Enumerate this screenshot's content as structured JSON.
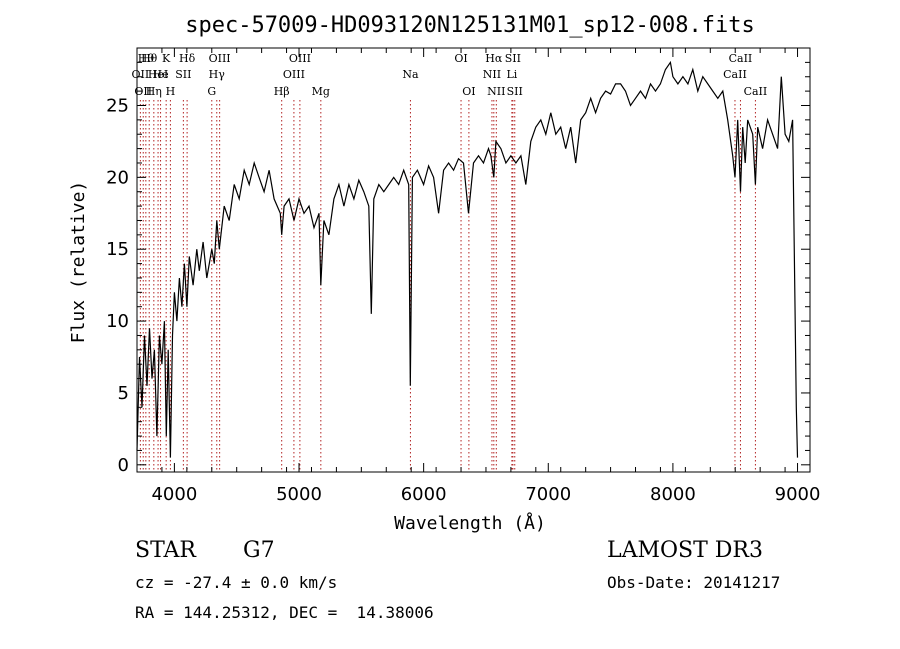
{
  "chart_data": {
    "type": "line",
    "title": "spec-57009-HD093120N125131M01_sp12-008.fits",
    "xlabel": "Wavelength (Å)",
    "ylabel": "Flux (relative)",
    "xlim": [
      3700,
      9100
    ],
    "ylim": [
      -0.5,
      29
    ],
    "x_ticks": [
      4000,
      5000,
      6000,
      7000,
      8000,
      9000
    ],
    "y_ticks": [
      0,
      5,
      10,
      15,
      20,
      25
    ],
    "grid": false,
    "line_color": "#000000",
    "marker_color": "#b22222",
    "series": [
      {
        "values": [
          [
            3700,
            1.0
          ],
          [
            3720,
            7.5
          ],
          [
            3740,
            4.0
          ],
          [
            3760,
            9.0
          ],
          [
            3780,
            5.5
          ],
          [
            3800,
            9.5
          ],
          [
            3820,
            6.0
          ],
          [
            3840,
            8.0
          ],
          [
            3860,
            2.0
          ],
          [
            3880,
            9.0
          ],
          [
            3900,
            7.0
          ],
          [
            3920,
            10.0
          ],
          [
            3935,
            2.0
          ],
          [
            3950,
            8.0
          ],
          [
            3968,
            0.5
          ],
          [
            3985,
            9.0
          ],
          [
            4000,
            12.0
          ],
          [
            4020,
            10.0
          ],
          [
            4040,
            13.0
          ],
          [
            4060,
            11.0
          ],
          [
            4080,
            14.0
          ],
          [
            4100,
            11.0
          ],
          [
            4120,
            14.5
          ],
          [
            4150,
            12.5
          ],
          [
            4180,
            15.0
          ],
          [
            4200,
            13.5
          ],
          [
            4230,
            15.5
          ],
          [
            4260,
            13.0
          ],
          [
            4300,
            15.0
          ],
          [
            4320,
            14.0
          ],
          [
            4340,
            17.0
          ],
          [
            4360,
            15.0
          ],
          [
            4400,
            18.0
          ],
          [
            4440,
            17.0
          ],
          [
            4480,
            19.5
          ],
          [
            4520,
            18.5
          ],
          [
            4560,
            20.5
          ],
          [
            4600,
            19.5
          ],
          [
            4640,
            21.0
          ],
          [
            4680,
            20.0
          ],
          [
            4720,
            19.0
          ],
          [
            4760,
            20.5
          ],
          [
            4800,
            18.5
          ],
          [
            4850,
            17.5
          ],
          [
            4861,
            16.0
          ],
          [
            4880,
            18.0
          ],
          [
            4920,
            18.5
          ],
          [
            4960,
            17.0
          ],
          [
            5000,
            18.5
          ],
          [
            5040,
            17.5
          ],
          [
            5080,
            18.0
          ],
          [
            5120,
            16.5
          ],
          [
            5160,
            17.5
          ],
          [
            5175,
            12.5
          ],
          [
            5200,
            17.0
          ],
          [
            5240,
            16.0
          ],
          [
            5280,
            18.5
          ],
          [
            5320,
            19.5
          ],
          [
            5360,
            18.0
          ],
          [
            5400,
            19.5
          ],
          [
            5440,
            18.5
          ],
          [
            5480,
            19.8
          ],
          [
            5520,
            19.0
          ],
          [
            5560,
            18.0
          ],
          [
            5580,
            10.5
          ],
          [
            5600,
            18.5
          ],
          [
            5640,
            19.5
          ],
          [
            5680,
            19.0
          ],
          [
            5720,
            19.5
          ],
          [
            5760,
            20.0
          ],
          [
            5800,
            19.5
          ],
          [
            5840,
            20.5
          ],
          [
            5880,
            19.5
          ],
          [
            5893,
            5.5
          ],
          [
            5910,
            20.0
          ],
          [
            5950,
            20.5
          ],
          [
            6000,
            19.5
          ],
          [
            6040,
            20.8
          ],
          [
            6080,
            20.0
          ],
          [
            6120,
            17.5
          ],
          [
            6160,
            20.5
          ],
          [
            6200,
            21.0
          ],
          [
            6240,
            20.5
          ],
          [
            6280,
            21.3
          ],
          [
            6320,
            21.0
          ],
          [
            6360,
            17.5
          ],
          [
            6400,
            21.0
          ],
          [
            6440,
            21.5
          ],
          [
            6480,
            21.0
          ],
          [
            6520,
            22.0
          ],
          [
            6540,
            21.5
          ],
          [
            6563,
            20.0
          ],
          [
            6580,
            22.5
          ],
          [
            6620,
            22.0
          ],
          [
            6660,
            21.0
          ],
          [
            6700,
            21.5
          ],
          [
            6740,
            21.0
          ],
          [
            6780,
            21.5
          ],
          [
            6820,
            19.5
          ],
          [
            6860,
            22.5
          ],
          [
            6900,
            23.5
          ],
          [
            6940,
            24.0
          ],
          [
            6980,
            23.0
          ],
          [
            7020,
            24.5
          ],
          [
            7060,
            23.0
          ],
          [
            7100,
            23.5
          ],
          [
            7140,
            22.0
          ],
          [
            7180,
            23.5
          ],
          [
            7220,
            21.0
          ],
          [
            7260,
            24.0
          ],
          [
            7300,
            24.5
          ],
          [
            7340,
            25.5
          ],
          [
            7380,
            24.5
          ],
          [
            7420,
            25.5
          ],
          [
            7460,
            26.0
          ],
          [
            7500,
            25.8
          ],
          [
            7540,
            26.5
          ],
          [
            7580,
            26.5
          ],
          [
            7620,
            26.0
          ],
          [
            7660,
            25.0
          ],
          [
            7700,
            25.5
          ],
          [
            7740,
            26.0
          ],
          [
            7780,
            25.5
          ],
          [
            7820,
            26.5
          ],
          [
            7860,
            26.0
          ],
          [
            7900,
            26.5
          ],
          [
            7940,
            27.5
          ],
          [
            7980,
            28.0
          ],
          [
            8000,
            27.0
          ],
          [
            8040,
            26.5
          ],
          [
            8080,
            27.0
          ],
          [
            8120,
            26.5
          ],
          [
            8160,
            27.5
          ],
          [
            8200,
            26.0
          ],
          [
            8240,
            27.0
          ],
          [
            8280,
            26.5
          ],
          [
            8320,
            26.0
          ],
          [
            8360,
            25.5
          ],
          [
            8400,
            26.0
          ],
          [
            8440,
            24.0
          ],
          [
            8480,
            21.5
          ],
          [
            8498,
            20.0
          ],
          [
            8520,
            24.0
          ],
          [
            8542,
            19.0
          ],
          [
            8560,
            23.5
          ],
          [
            8580,
            21.0
          ],
          [
            8600,
            24.0
          ],
          [
            8640,
            23.0
          ],
          [
            8662,
            19.5
          ],
          [
            8680,
            23.5
          ],
          [
            8720,
            22.0
          ],
          [
            8760,
            24.0
          ],
          [
            8800,
            23.0
          ],
          [
            8840,
            22.0
          ],
          [
            8870,
            27.0
          ],
          [
            8900,
            23.0
          ],
          [
            8930,
            22.5
          ],
          [
            8960,
            24.0
          ],
          [
            8990,
            4.0
          ],
          [
            9000,
            0.5
          ]
        ]
      }
    ],
    "lines": [
      {
        "wavelength": 3727,
        "label": "OII",
        "row": 2
      },
      {
        "wavelength": 3750,
        "label": "OII",
        "row": 3
      },
      {
        "wavelength": 3771,
        "label": "Hθ",
        "row": 1
      },
      {
        "wavelength": 3798,
        "label": "Hθ",
        "row": 1
      },
      {
        "wavelength": 3835,
        "label": "Hη",
        "row": 3
      },
      {
        "wavelength": 3869,
        "label": "HeI",
        "row": 2
      },
      {
        "wavelength": 3889,
        "label": "He",
        "row": 2
      },
      {
        "wavelength": 3934,
        "label": "K",
        "row": 1
      },
      {
        "wavelength": 3968,
        "label": "H",
        "row": 3
      },
      {
        "wavelength": 4072,
        "label": "SII",
        "row": 2
      },
      {
        "wavelength": 4102,
        "label": "Hδ",
        "row": 1
      },
      {
        "wavelength": 4300,
        "label": "G",
        "row": 3
      },
      {
        "wavelength": 4340,
        "label": "Hγ",
        "row": 2
      },
      {
        "wavelength": 4363,
        "label": "OIII",
        "row": 1
      },
      {
        "wavelength": 4861,
        "label": "Hβ",
        "row": 3
      },
      {
        "wavelength": 4959,
        "label": "OIII",
        "row": 2
      },
      {
        "wavelength": 5007,
        "label": "OIII",
        "row": 1
      },
      {
        "wavelength": 5175,
        "label": "Mg",
        "row": 3
      },
      {
        "wavelength": 5894,
        "label": "Na",
        "row": 2
      },
      {
        "wavelength": 6300,
        "label": "OI",
        "row": 1
      },
      {
        "wavelength": 6363,
        "label": "OI",
        "row": 3
      },
      {
        "wavelength": 6548,
        "label": "NII",
        "row": 2
      },
      {
        "wavelength": 6563,
        "label": "Hα",
        "row": 1
      },
      {
        "wavelength": 6583,
        "label": "NII",
        "row": 3
      },
      {
        "wavelength": 6708,
        "label": "Li",
        "row": 2
      },
      {
        "wavelength": 6716,
        "label": "SII",
        "row": 1
      },
      {
        "wavelength": 6731,
        "label": "SII",
        "row": 3
      },
      {
        "wavelength": 8498,
        "label": "CaII",
        "row": 2
      },
      {
        "wavelength": 8542,
        "label": "CaII",
        "row": 1
      },
      {
        "wavelength": 8662,
        "label": "CaII",
        "row": 3
      }
    ]
  },
  "info": {
    "object_class": "STAR",
    "subclass": "G7",
    "survey": "LAMOST DR3",
    "cz": "cz = -27.4 ± 0.0 km/s",
    "obs_date": "Obs-Date: 20141217",
    "radec": "RA = 144.25312, DEC =  14.38006"
  }
}
